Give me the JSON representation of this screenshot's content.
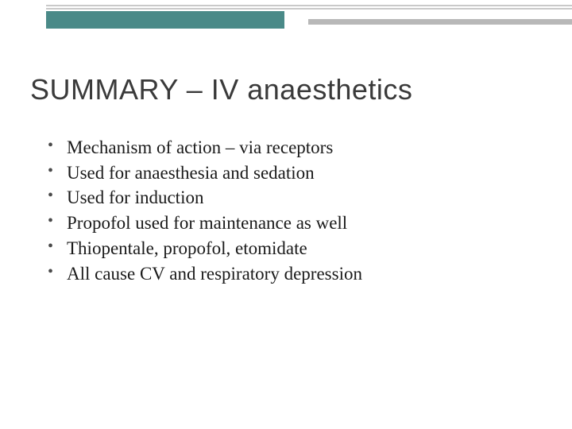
{
  "colors": {
    "background": "#ffffff",
    "teal_accent": "#4a8a88",
    "gray_bar": "#b8b8b8",
    "gray_line": "#c9c9c9",
    "title_text": "#3a3a3a",
    "body_text": "#1a1a1a",
    "bullet": "#4a4a4a"
  },
  "typography": {
    "title_font": "Segoe UI, Trebuchet MS, Arial, sans-serif",
    "title_fontsize": 36,
    "body_font": "Georgia, Times New Roman, serif",
    "body_fontsize": 23,
    "line_height": 1.38
  },
  "decoration": {
    "teal_bar_width": 300,
    "teal_bar_height": 22,
    "gray_bar_height": 7
  },
  "title": "SUMMARY – IV anaesthetics",
  "bullets": [
    "Mechanism of action – via receptors",
    "Used for anaesthesia and sedation",
    "Used for induction",
    "Propofol used for maintenance as well",
    "Thiopentale, propofol, etomidate",
    "All cause CV and respiratory depression"
  ]
}
